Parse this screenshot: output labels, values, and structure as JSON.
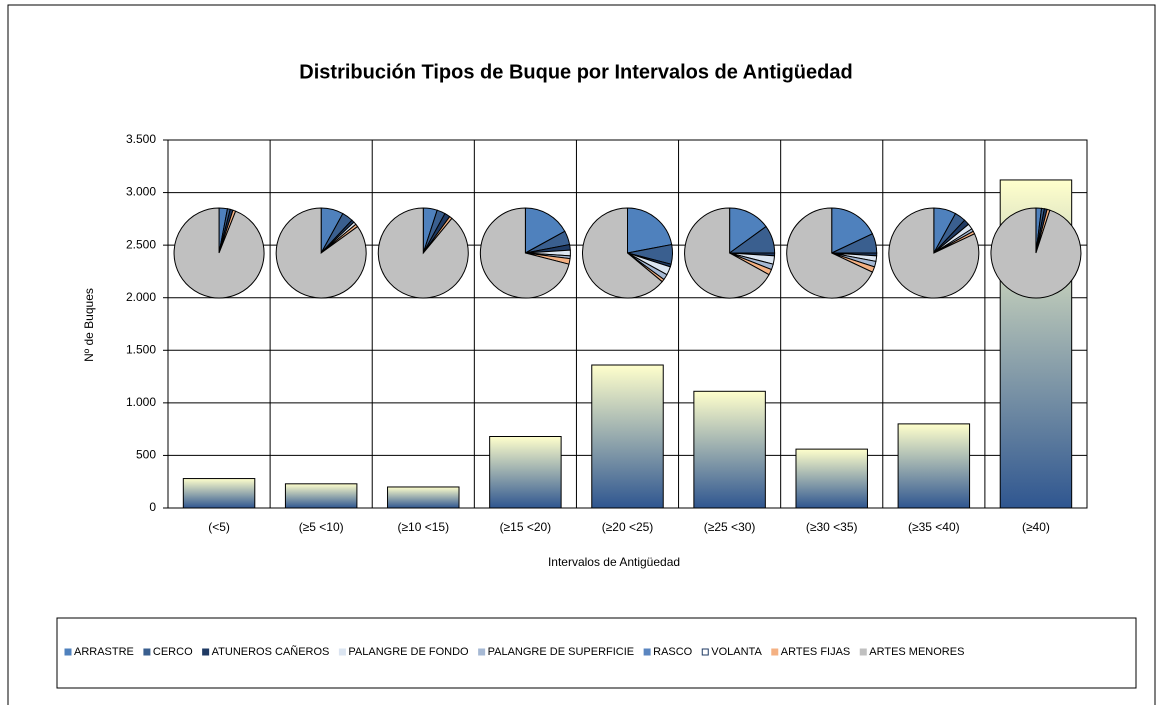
{
  "chart_data": {
    "type": "bar",
    "title": "Distribución Tipos de Buque por Intervalos de Antigüedad",
    "x_label": "Intervalos de Antigüedad",
    "y_label": "Nº de Buques",
    "categories": [
      "(<5)",
      "(≥5  <10)",
      "(≥10  <15)",
      "(≥15  <20)",
      "(≥20  <25)",
      "(≥25  <30)",
      "(≥30  <35)",
      "(≥35  <40)",
      "(≥40)"
    ],
    "values": [
      280,
      230,
      200,
      680,
      1360,
      1110,
      560,
      800,
      3120
    ],
    "gradient": [
      "#ffffcc",
      "#2f5690"
    ],
    "ylim": [
      0,
      3500
    ],
    "yticks": [
      0,
      {
        "value": 500,
        "label": "500"
      },
      {
        "value": 1000,
        "label": "1.000"
      },
      {
        "value": 1500,
        "label": "1.500"
      },
      {
        "value": 2000,
        "label": "2.000"
      },
      {
        "value": 2500,
        "label": "2.500"
      },
      {
        "value": 3000,
        "label": "3.000"
      },
      {
        "value": 3500,
        "label": "3.500"
      }
    ],
    "grid": true,
    "pie_type": "pie",
    "pie_series": [
      {
        "name": "ARRASTRE",
        "color": "#4f81bd",
        "values": [
          3,
          8,
          5,
          17,
          22,
          15,
          18,
          8,
          2
        ]
      },
      {
        "name": "CERCO",
        "color": "#3a5f8f",
        "values": [
          1,
          4,
          3,
          5,
          7,
          10,
          7,
          4,
          1
        ]
      },
      {
        "name": "ATUNEROS CAÑEROS",
        "color": "#1f3a63",
        "values": [
          1,
          1,
          2,
          2,
          1,
          1,
          1,
          2,
          1
        ]
      },
      {
        "name": "PALANGRE DE FONDO",
        "color": "#dbe5f1",
        "values": [
          0,
          1,
          0,
          2,
          3,
          3,
          2,
          2,
          0
        ]
      },
      {
        "name": "PALANGRE DE SUPERFICIE",
        "color": "#a6b9d4",
        "values": [
          0,
          0,
          0,
          1,
          2,
          2,
          2,
          1,
          0
        ]
      },
      {
        "name": "RASCO",
        "color": "#5b86c0",
        "values": [
          0,
          0,
          0,
          0,
          0,
          0,
          0,
          0,
          0
        ]
      },
      {
        "name": "VOLANTA",
        "color": "#ffffff",
        "values": [
          0,
          0,
          0,
          0,
          0,
          0,
          0,
          0,
          0
        ]
      },
      {
        "name": "ARTES FIJAS",
        "color": "#f4b183",
        "values": [
          1,
          1,
          1,
          2,
          1,
          2,
          2,
          1,
          1
        ]
      },
      {
        "name": "ARTES MENORES",
        "color": "#c0c0c0",
        "values": [
          94,
          85,
          89,
          71,
          64,
          67,
          68,
          82,
          95
        ]
      }
    ]
  }
}
